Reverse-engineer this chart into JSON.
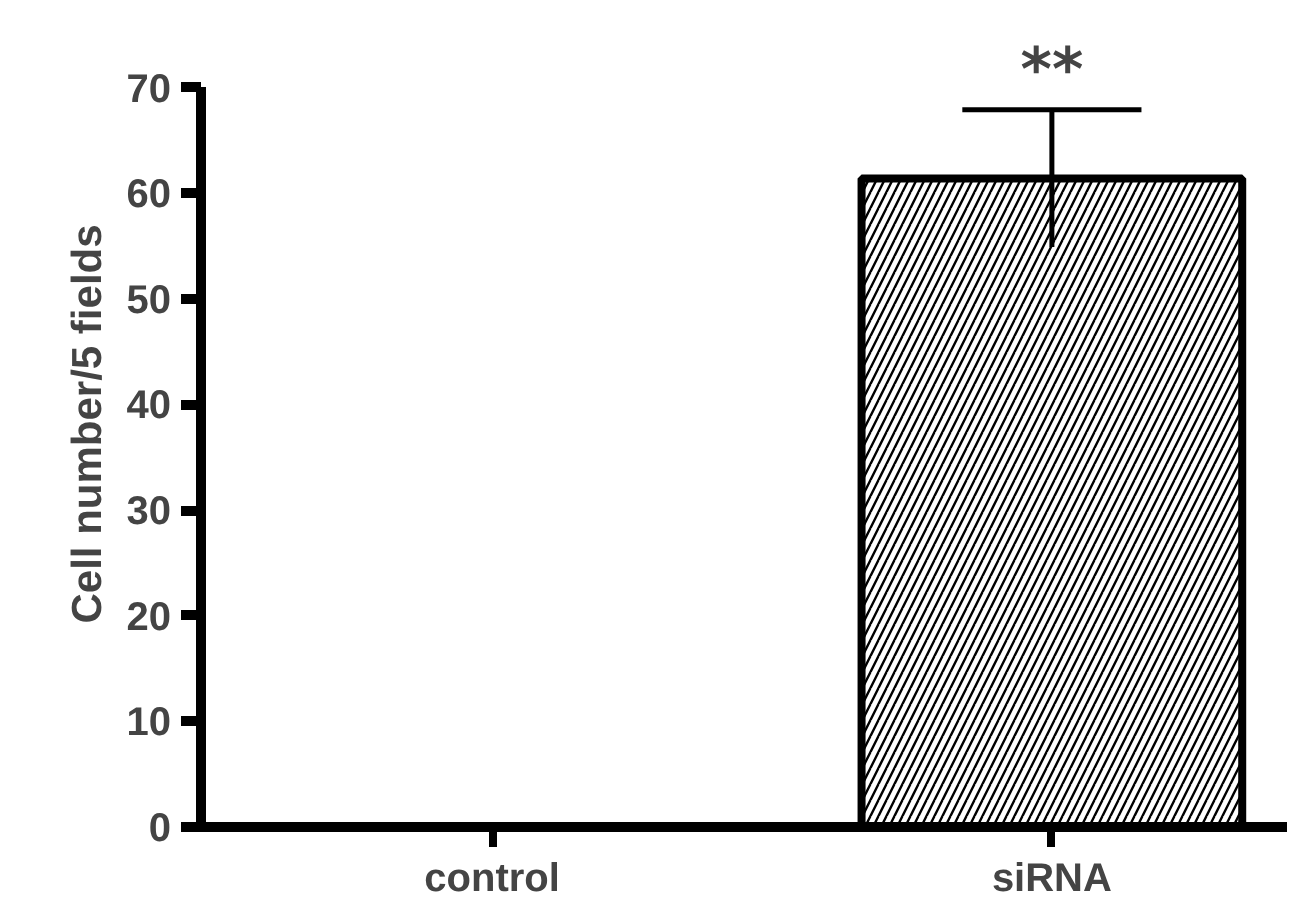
{
  "chart_data": {
    "type": "bar",
    "ylabel": "Cell number/5 fields",
    "categories": [
      "control",
      "siRNA"
    ],
    "values": [
      0,
      61.4
    ],
    "errors": [
      null,
      6.5
    ],
    "color": "#ffffff",
    "ylim": [
      0,
      70
    ],
    "yticks": [
      0,
      10,
      20,
      30,
      40,
      50,
      60,
      70
    ],
    "grid": false,
    "annotations": [
      {
        "text": "**",
        "x": "siRNA",
        "y": 67.9
      }
    ]
  }
}
